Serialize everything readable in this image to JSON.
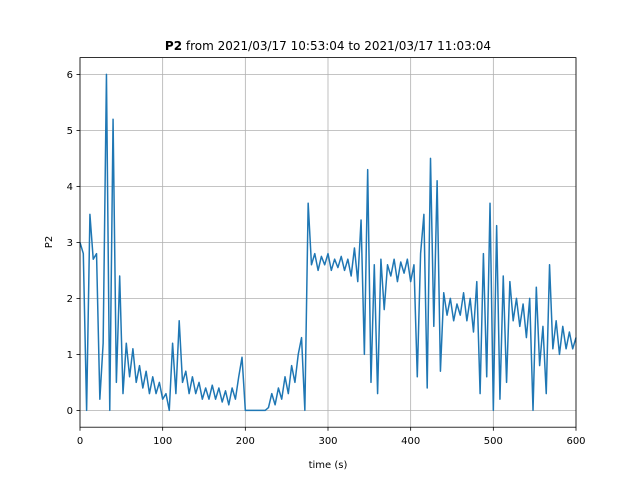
{
  "chart_data": {
    "type": "line",
    "title": {
      "bold": "P2",
      "rest": "from 2021/03/17 10:53:04 to 2021/03/17 11:03:04"
    },
    "xlabel": "time (s)",
    "ylabel": "P2",
    "xlim": [
      0,
      600
    ],
    "xticks": [
      0,
      100,
      200,
      300,
      400,
      500,
      600
    ],
    "ylim": [
      -0.3,
      6.3
    ],
    "yticks": [
      0,
      1,
      2,
      3,
      4,
      5,
      6
    ],
    "grid": true,
    "series": [
      {
        "color": "#1f77b4",
        "x": [
          0,
          4,
          8,
          12,
          16,
          20,
          24,
          28,
          32,
          36,
          40,
          44,
          48,
          52,
          56,
          60,
          64,
          68,
          72,
          76,
          80,
          84,
          88,
          92,
          96,
          100,
          104,
          108,
          112,
          116,
          120,
          124,
          128,
          132,
          136,
          140,
          144,
          148,
          152,
          156,
          160,
          164,
          168,
          172,
          176,
          180,
          184,
          188,
          192,
          196,
          200,
          204,
          208,
          212,
          216,
          220,
          224,
          228,
          232,
          236,
          240,
          244,
          248,
          252,
          256,
          260,
          264,
          268,
          272,
          276,
          280,
          284,
          288,
          292,
          296,
          300,
          304,
          308,
          312,
          316,
          320,
          324,
          328,
          332,
          336,
          340,
          344,
          348,
          352,
          356,
          360,
          364,
          368,
          372,
          376,
          380,
          384,
          388,
          392,
          396,
          400,
          404,
          408,
          412,
          416,
          420,
          424,
          428,
          432,
          436,
          440,
          444,
          448,
          452,
          456,
          460,
          464,
          468,
          472,
          476,
          480,
          484,
          488,
          492,
          496,
          500,
          504,
          508,
          512,
          516,
          520,
          524,
          528,
          532,
          536,
          540,
          544,
          548,
          552,
          556,
          560,
          564,
          568,
          572,
          576,
          580,
          584,
          588,
          592,
          596,
          600
        ],
        "values": [
          3.0,
          2.8,
          0,
          3.5,
          2.7,
          2.8,
          0.2,
          1.2,
          6.0,
          0,
          5.2,
          0.5,
          2.4,
          0.3,
          1.2,
          0.6,
          1.1,
          0.5,
          0.8,
          0.4,
          0.7,
          0.3,
          0.6,
          0.3,
          0.5,
          0.2,
          0.3,
          0,
          1.2,
          0.3,
          1.6,
          0.5,
          0.7,
          0.3,
          0.6,
          0.3,
          0.5,
          0.2,
          0.4,
          0.2,
          0.45,
          0.2,
          0.4,
          0.15,
          0.35,
          0.1,
          0.4,
          0.2,
          0.6,
          0.95,
          0,
          0,
          0,
          0,
          0,
          0,
          0,
          0.05,
          0.3,
          0.1,
          0.4,
          0.2,
          0.6,
          0.3,
          0.8,
          0.5,
          1.0,
          1.3,
          0,
          3.7,
          2.6,
          2.8,
          2.5,
          2.75,
          2.6,
          2.8,
          2.5,
          2.7,
          2.55,
          2.75,
          2.5,
          2.7,
          2.4,
          2.9,
          2.3,
          3.4,
          1.0,
          4.3,
          0.5,
          2.6,
          0.3,
          2.7,
          1.8,
          2.6,
          2.4,
          2.7,
          2.3,
          2.65,
          2.45,
          2.7,
          2.3,
          2.6,
          0.6,
          2.8,
          3.5,
          0.4,
          4.5,
          1.5,
          4.1,
          0.7,
          2.1,
          1.7,
          2.0,
          1.6,
          1.9,
          1.7,
          2.1,
          1.6,
          2.0,
          1.4,
          2.3,
          0.3,
          2.8,
          0.6,
          3.7,
          0,
          3.3,
          0.2,
          2.4,
          0.5,
          2.3,
          1.6,
          2.0,
          1.5,
          1.9,
          1.3,
          2.0,
          0,
          2.2,
          0.8,
          1.5,
          0.3,
          2.6,
          1.1,
          1.6,
          1.0,
          1.5,
          1.1,
          1.4,
          1.1,
          1.3
        ]
      }
    ]
  }
}
